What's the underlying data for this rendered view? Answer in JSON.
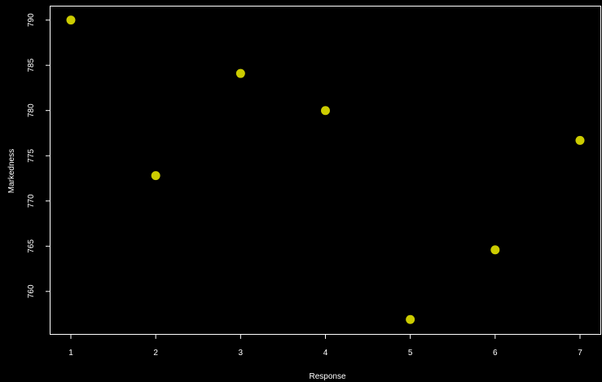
{
  "chart_data": {
    "type": "scatter",
    "title": "",
    "xlabel": "Response",
    "ylabel": "Markedness",
    "x_ticks": [
      1,
      2,
      3,
      4,
      5,
      6,
      7
    ],
    "y_ticks": [
      760,
      765,
      770,
      775,
      780,
      785,
      790
    ],
    "xlim": [
      0.76,
      7.24
    ],
    "ylim": [
      755.3,
      791.5
    ],
    "grid": false,
    "series": [
      {
        "x": [
          1,
          2,
          3,
          4,
          5,
          6,
          7
        ],
        "y": [
          790.0,
          772.8,
          784.1,
          780.0,
          756.9,
          764.6,
          776.7
        ]
      }
    ],
    "colors": {
      "background": "#000000",
      "axes": "#ffffff",
      "point": "#cccc00"
    }
  }
}
